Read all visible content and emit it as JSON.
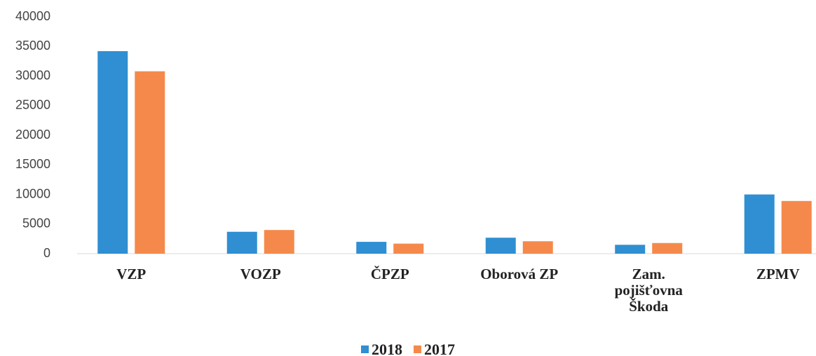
{
  "chart_data": {
    "type": "bar",
    "categories": [
      "VZP",
      "VOZP",
      "ČPZP",
      "Oborová ZP",
      "Zam. pojišťovna Škoda",
      "ZPMV"
    ],
    "series": [
      {
        "name": "2018",
        "color": "#2f8fd2",
        "values": [
          34200,
          3700,
          2000,
          2700,
          1500,
          10000
        ]
      },
      {
        "name": "2017",
        "color": "#f5894b",
        "values": [
          30800,
          4000,
          1700,
          2100,
          1800,
          8900
        ]
      }
    ],
    "ylim": [
      0,
      40000
    ],
    "yticks": [
      0,
      5000,
      10000,
      15000,
      20000,
      25000,
      30000,
      35000,
      40000
    ],
    "grid": false
  }
}
